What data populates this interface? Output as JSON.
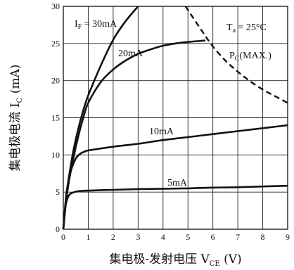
{
  "chart_data": {
    "type": "line",
    "xlabel": "集电极-发射电压",
    "xlabel_symbol": "V",
    "xlabel_sub": "CE",
    "xlabel_unit": "(V)",
    "ylabel": "集电极电流",
    "ylabel_symbol": "I",
    "ylabel_sub": "C",
    "ylabel_unit": "(mA)",
    "xlim": [
      0,
      9
    ],
    "ylim": [
      0,
      30
    ],
    "xticks": [
      0,
      1,
      2,
      3,
      4,
      5,
      6,
      7,
      8,
      9
    ],
    "yticks": [
      0,
      5,
      10,
      15,
      20,
      25,
      30
    ],
    "grid": true,
    "annotation_ta": {
      "symbol": "T",
      "sub": "a",
      "text": " = 25°C"
    },
    "annotation_pc": {
      "symbol": "P",
      "sub": "C",
      "text": "(MAX.)"
    },
    "series": [
      {
        "name": "I_F = 30mA",
        "label_symbol": "I",
        "label_sub": "F",
        "label_text": " = 30mA",
        "x": [
          0,
          0.1,
          0.2,
          0.4,
          0.6,
          0.8,
          1.0,
          1.5,
          2.0,
          2.5,
          3.0
        ],
        "y": [
          0,
          4,
          6.5,
          10.5,
          13.5,
          16,
          18,
          22,
          25.5,
          28,
          30
        ]
      },
      {
        "name": "20mA",
        "label_text": "20mA",
        "x": [
          0,
          0.1,
          0.2,
          0.4,
          0.6,
          0.8,
          1.0,
          1.5,
          2.0,
          2.5,
          3.0,
          3.5,
          4.0,
          4.5,
          5.0,
          5.7
        ],
        "y": [
          0,
          3.5,
          6,
          9.5,
          12.5,
          15,
          17,
          19.8,
          21.5,
          22.7,
          23.6,
          24.2,
          24.7,
          25.0,
          25.2,
          25.4
        ]
      },
      {
        "name": "10mA",
        "label_text": "10mA",
        "x": [
          0,
          0.1,
          0.2,
          0.3,
          0.5,
          0.7,
          0.9,
          1.0,
          2,
          3,
          4,
          5,
          6,
          7,
          8,
          9
        ],
        "y": [
          0,
          3.5,
          6,
          7.8,
          9.5,
          10.2,
          10.5,
          10.6,
          11.1,
          11.5,
          12.0,
          12.4,
          12.8,
          13.2,
          13.6,
          14.0
        ]
      },
      {
        "name": "5mA",
        "label_text": "5mA",
        "x": [
          0,
          0.05,
          0.1,
          0.2,
          0.3,
          0.5,
          0.7,
          1.0,
          2,
          3,
          4,
          5,
          6,
          7,
          8,
          9
        ],
        "y": [
          0,
          2.0,
          3.3,
          4.4,
          4.8,
          5.05,
          5.15,
          5.2,
          5.3,
          5.4,
          5.45,
          5.5,
          5.6,
          5.65,
          5.75,
          5.85
        ]
      },
      {
        "name": "P_C(MAX.)",
        "dashed": true,
        "x": [
          4.9,
          5.2,
          5.6,
          6.0,
          6.5,
          7.0,
          7.5,
          8.0,
          8.5,
          9.0
        ],
        "y": [
          30.0,
          28.5,
          26.5,
          24.6,
          22.7,
          21.2,
          19.9,
          18.8,
          17.9,
          17.0
        ]
      }
    ]
  }
}
